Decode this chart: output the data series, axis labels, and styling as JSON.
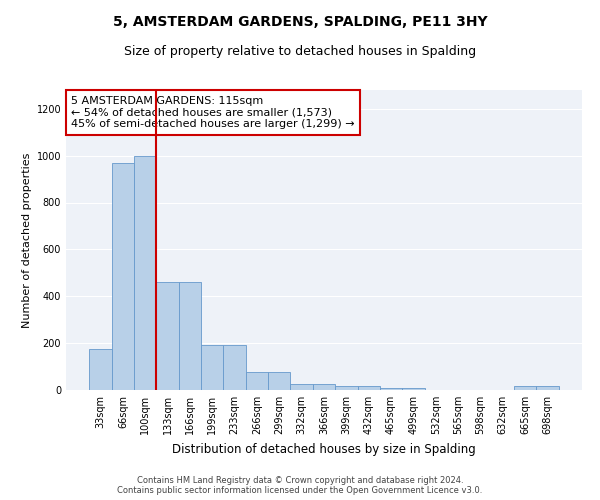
{
  "title": "5, AMSTERDAM GARDENS, SPALDING, PE11 3HY",
  "subtitle": "Size of property relative to detached houses in Spalding",
  "xlabel": "Distribution of detached houses by size in Spalding",
  "ylabel": "Number of detached properties",
  "categories": [
    "33sqm",
    "66sqm",
    "100sqm",
    "133sqm",
    "166sqm",
    "199sqm",
    "233sqm",
    "266sqm",
    "299sqm",
    "332sqm",
    "366sqm",
    "399sqm",
    "432sqm",
    "465sqm",
    "499sqm",
    "532sqm",
    "565sqm",
    "598sqm",
    "632sqm",
    "665sqm",
    "698sqm"
  ],
  "values": [
    175,
    970,
    1000,
    460,
    460,
    190,
    190,
    75,
    75,
    25,
    25,
    15,
    15,
    10,
    10,
    0,
    0,
    0,
    0,
    15,
    15
  ],
  "bar_color": "#b8d0e8",
  "bar_edge_color": "#6699cc",
  "vline_x": 2.5,
  "vline_color": "#cc0000",
  "annotation_text": "5 AMSTERDAM GARDENS: 115sqm\n← 54% of detached houses are smaller (1,573)\n45% of semi-detached houses are larger (1,299) →",
  "annotation_box_color": "#ffffff",
  "annotation_box_edge": "#cc0000",
  "ylim": [
    0,
    1280
  ],
  "yticks": [
    0,
    200,
    400,
    600,
    800,
    1000,
    1200
  ],
  "background_color": "#eef2f8",
  "footer_text": "Contains HM Land Registry data © Crown copyright and database right 2024.\nContains public sector information licensed under the Open Government Licence v3.0.",
  "title_fontsize": 10,
  "subtitle_fontsize": 9,
  "xlabel_fontsize": 8.5,
  "ylabel_fontsize": 8,
  "tick_fontsize": 7,
  "annotation_fontsize": 8,
  "footer_fontsize": 6
}
